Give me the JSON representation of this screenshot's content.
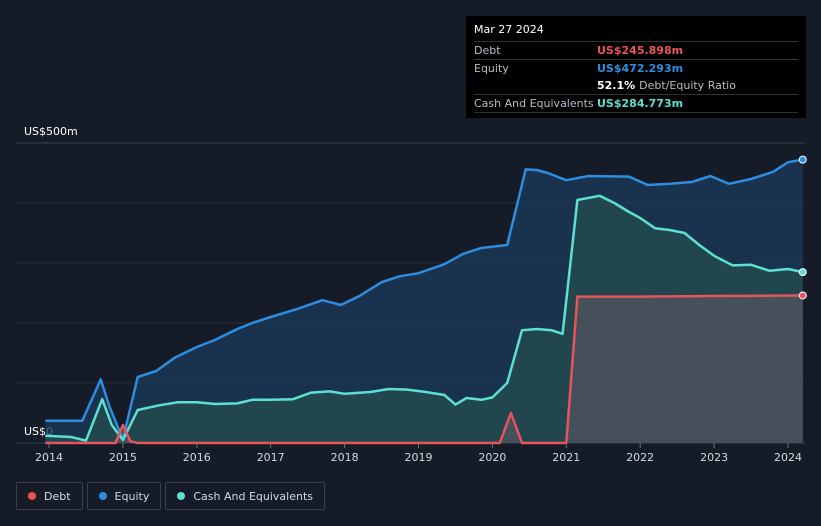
{
  "tooltip": {
    "date": "Mar 27 2024",
    "debt_label": "Debt",
    "debt_value": "US$245.898m",
    "equity_label": "Equity",
    "equity_value": "US$472.293m",
    "ratio_value": "52.1%",
    "ratio_label": "Debt/Equity Ratio",
    "cash_label": "Cash And Equivalents",
    "cash_value": "US$284.773m"
  },
  "legend": [
    {
      "label": "Debt",
      "color": "#e8545a"
    },
    {
      "label": "Equity",
      "color": "#2d8de0"
    },
    {
      "label": "Cash And Equivalents",
      "color": "#5ce0cf"
    }
  ],
  "colors": {
    "debt": "#e8545a",
    "equity": "#2d8de0",
    "cash": "#5ce0cf",
    "background": "#151b27"
  },
  "chart_data": {
    "type": "area",
    "y_max_label": "US$500m",
    "y_min_label": "US$0",
    "ylim": [
      0,
      500
    ],
    "xlim": [
      2014,
      2024.25
    ],
    "x_ticks": [
      2014,
      2015,
      2016,
      2017,
      2018,
      2019,
      2020,
      2021,
      2022,
      2023,
      2024
    ],
    "grid": true,
    "series": [
      {
        "name": "Debt",
        "points": [
          [
            2013.95,
            0
          ],
          [
            2014.9,
            0
          ],
          [
            2015.0,
            30
          ],
          [
            2015.1,
            3
          ],
          [
            2015.2,
            0
          ],
          [
            2020.1,
            0
          ],
          [
            2020.25,
            50
          ],
          [
            2020.4,
            0
          ],
          [
            2021.0,
            0
          ],
          [
            2021.15,
            244
          ],
          [
            2022.0,
            244
          ],
          [
            2023.0,
            245
          ],
          [
            2024.2,
            245.9
          ]
        ]
      },
      {
        "name": "Equity",
        "points": [
          [
            2013.95,
            37
          ],
          [
            2014.45,
            37
          ],
          [
            2014.7,
            106
          ],
          [
            2014.82,
            60
          ],
          [
            2015.0,
            6
          ],
          [
            2015.2,
            110
          ],
          [
            2015.45,
            120
          ],
          [
            2015.7,
            142
          ],
          [
            2016.0,
            160
          ],
          [
            2016.25,
            172
          ],
          [
            2016.55,
            190
          ],
          [
            2016.75,
            200
          ],
          [
            2017.0,
            210
          ],
          [
            2017.35,
            223
          ],
          [
            2017.7,
            238
          ],
          [
            2017.95,
            230
          ],
          [
            2018.2,
            245
          ],
          [
            2018.5,
            268
          ],
          [
            2018.75,
            278
          ],
          [
            2019.0,
            283
          ],
          [
            2019.35,
            298
          ],
          [
            2019.6,
            315
          ],
          [
            2019.85,
            325
          ],
          [
            2020.2,
            330
          ],
          [
            2020.45,
            456
          ],
          [
            2020.6,
            455
          ],
          [
            2020.75,
            450
          ],
          [
            2021.0,
            438
          ],
          [
            2021.3,
            445
          ],
          [
            2021.85,
            444
          ],
          [
            2022.1,
            430
          ],
          [
            2022.4,
            432
          ],
          [
            2022.7,
            435
          ],
          [
            2022.95,
            445
          ],
          [
            2023.2,
            432
          ],
          [
            2023.5,
            440
          ],
          [
            2023.8,
            452
          ],
          [
            2024.0,
            468
          ],
          [
            2024.2,
            472.3
          ]
        ]
      },
      {
        "name": "Cash And Equivalents",
        "points": [
          [
            2013.95,
            12
          ],
          [
            2014.3,
            10
          ],
          [
            2014.5,
            4
          ],
          [
            2014.72,
            73
          ],
          [
            2014.85,
            30
          ],
          [
            2015.0,
            5
          ],
          [
            2015.2,
            55
          ],
          [
            2015.5,
            63
          ],
          [
            2015.75,
            68
          ],
          [
            2016.0,
            68
          ],
          [
            2016.25,
            65
          ],
          [
            2016.55,
            66
          ],
          [
            2016.75,
            72
          ],
          [
            2017.0,
            72
          ],
          [
            2017.3,
            73
          ],
          [
            2017.55,
            84
          ],
          [
            2017.8,
            86
          ],
          [
            2018.0,
            82
          ],
          [
            2018.35,
            85
          ],
          [
            2018.6,
            90
          ],
          [
            2018.85,
            89
          ],
          [
            2019.1,
            85
          ],
          [
            2019.35,
            80
          ],
          [
            2019.5,
            64
          ],
          [
            2019.65,
            75
          ],
          [
            2019.85,
            72
          ],
          [
            2020.0,
            76
          ],
          [
            2020.2,
            100
          ],
          [
            2020.4,
            188
          ],
          [
            2020.6,
            190
          ],
          [
            2020.8,
            188
          ],
          [
            2020.95,
            182
          ],
          [
            2021.15,
            405
          ],
          [
            2021.45,
            412
          ],
          [
            2021.65,
            400
          ],
          [
            2021.85,
            385
          ],
          [
            2022.0,
            375
          ],
          [
            2022.2,
            358
          ],
          [
            2022.4,
            355
          ],
          [
            2022.6,
            350
          ],
          [
            2022.8,
            330
          ],
          [
            2023.0,
            312
          ],
          [
            2023.25,
            296
          ],
          [
            2023.5,
            297
          ],
          [
            2023.75,
            287
          ],
          [
            2024.0,
            290
          ],
          [
            2024.2,
            284.8
          ]
        ]
      }
    ]
  }
}
